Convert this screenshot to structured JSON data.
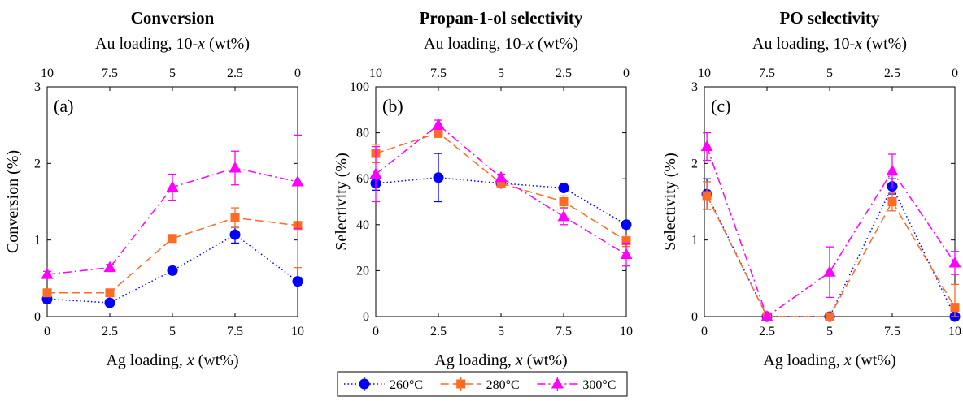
{
  "series_style": [
    {
      "color": "#0000ff",
      "dash": "1.5,3",
      "marker": "circle"
    },
    {
      "color": "#ff6a24",
      "dash": "10,5",
      "marker": "square"
    },
    {
      "color": "#ff00ff",
      "dash": "10,4,2,4",
      "marker": "triangle"
    }
  ],
  "legend": {
    "entries": [
      "260°C",
      "280°C",
      "300°C"
    ],
    "placement": "bottom-center"
  },
  "chart_data": [
    {
      "type": "line",
      "title": "Conversion",
      "panel_label": "(a)",
      "xlabel": "Ag loading, x (wt%)",
      "x2label": "Au loading, 10-x (wt%)",
      "ylabel": "Conversion (%)",
      "xlim": [
        0,
        10
      ],
      "ylim": [
        0,
        3
      ],
      "xticks": [
        0,
        2.5,
        5,
        7.5,
        10
      ],
      "xtick_labels": [
        "0",
        "2.5",
        "5",
        "7.5",
        "10"
      ],
      "x2tick_labels": [
        "10",
        "7.5",
        "5",
        "2.5",
        "0"
      ],
      "yticks": [
        0,
        1,
        2,
        3
      ],
      "ytick_labels": [
        "0",
        "1",
        "2",
        "3"
      ],
      "x": [
        0,
        2.5,
        5,
        7.5,
        10
      ],
      "series": [
        {
          "name": "260°C",
          "values": [
            0.23,
            0.18,
            0.6,
            1.07,
            0.46
          ],
          "err": [
            0.05,
            0.04,
            0.04,
            0.11,
            0.05
          ]
        },
        {
          "name": "280°C",
          "values": [
            0.31,
            0.31,
            1.02,
            1.29,
            1.19
          ],
          "err": [
            0.04,
            0.04,
            0.04,
            0.13,
            0.55
          ]
        },
        {
          "name": "300°C",
          "values": [
            0.55,
            0.64,
            1.69,
            1.94,
            1.76
          ],
          "err": [
            0.04,
            0.04,
            0.17,
            0.22,
            0.61
          ]
        }
      ]
    },
    {
      "type": "line",
      "title": "Propan-1-ol selectivity",
      "panel_label": "(b)",
      "xlabel": "Ag loading, x (wt%)",
      "x2label": "Au loading, 10-x (wt%)",
      "ylabel": "Selectivity (%)",
      "xlim": [
        0,
        10
      ],
      "ylim": [
        0,
        100
      ],
      "xticks": [
        0,
        2.5,
        5,
        7.5,
        10
      ],
      "xtick_labels": [
        "0",
        "2.5",
        "5",
        "7.5",
        "10"
      ],
      "x2tick_labels": [
        "10",
        "7.5",
        "5",
        "2.5",
        "0"
      ],
      "yticks": [
        0,
        20,
        40,
        60,
        80,
        100
      ],
      "ytick_labels": [
        "0",
        "20",
        "40",
        "60",
        "80",
        "100"
      ],
      "x": [
        0,
        2.5,
        5,
        7.5,
        10
      ],
      "series": [
        {
          "name": "260°C",
          "values": [
            58,
            60.5,
            58,
            56,
            40
          ],
          "err": [
            3,
            10.5,
            1.5,
            1.5,
            1.5
          ]
        },
        {
          "name": "280°C",
          "values": [
            71,
            80,
            58,
            50,
            33
          ],
          "err": [
            4,
            2,
            1.5,
            2.5,
            2.5
          ]
        },
        {
          "name": "300°C",
          "values": [
            62,
            83.5,
            60.5,
            43.5,
            27
          ],
          "err": [
            12,
            2,
            1.5,
            3.5,
            5
          ]
        }
      ]
    },
    {
      "type": "line",
      "title": "PO selectivity",
      "panel_label": "(c)",
      "xlabel": "Ag loading, x (wt%)",
      "x2label": "Au loading, 10-x (wt%)",
      "ylabel": "Selectivity (%)",
      "xlim": [
        0,
        10
      ],
      "ylim": [
        0,
        3
      ],
      "xticks": [
        0,
        2.5,
        5,
        7.5,
        10
      ],
      "xtick_labels": [
        "0",
        "2.5",
        "5",
        "7.5",
        "10"
      ],
      "x2tick_labels": [
        "10",
        "7.5",
        "5",
        "2.5",
        "0"
      ],
      "yticks": [
        0,
        1,
        2,
        3
      ],
      "ytick_labels": [
        "0",
        "1",
        "2",
        "3"
      ],
      "x": [
        0.1,
        2.5,
        5,
        7.5,
        10
      ],
      "series": [
        {
          "name": "260°C",
          "values": [
            1.6,
            0,
            0,
            1.7,
            0
          ],
          "err": [
            0.2,
            0,
            0,
            0.1,
            0
          ]
        },
        {
          "name": "280°C",
          "values": [
            1.58,
            0,
            0,
            1.5,
            0.12
          ],
          "err": [
            0.18,
            0,
            0,
            0.12,
            0.3
          ]
        },
        {
          "name": "300°C",
          "values": [
            2.22,
            0,
            0.58,
            1.9,
            0.7
          ],
          "err": [
            0.18,
            0,
            0.33,
            0.22,
            0.15
          ]
        }
      ]
    }
  ]
}
